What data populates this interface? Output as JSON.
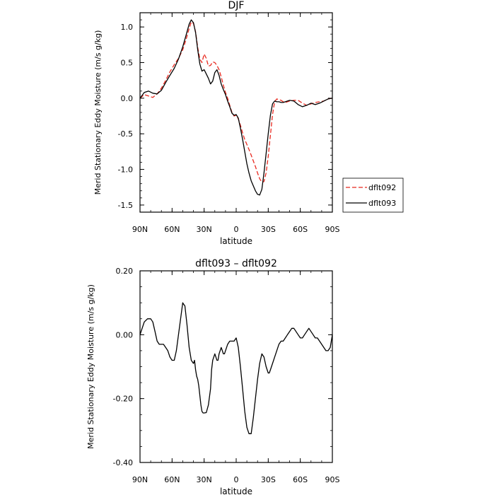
{
  "chart_data": [
    {
      "type": "line",
      "title": "DJF",
      "xlabel": "latitude",
      "ylabel": "Merid Stationary Eddy Moisture (m/s g/kg)",
      "xlim": [
        90,
        -90
      ],
      "ylim": [
        -1.6,
        1.2
      ],
      "xticks": [
        {
          "value": 90,
          "label": "90N"
        },
        {
          "value": 60,
          "label": "60N"
        },
        {
          "value": 30,
          "label": "30N"
        },
        {
          "value": 0,
          "label": "0"
        },
        {
          "value": -30,
          "label": "30S"
        },
        {
          "value": -60,
          "label": "60S"
        },
        {
          "value": -90,
          "label": "90S"
        }
      ],
      "yticks": [
        {
          "value": 1.0,
          "label": "1.0"
        },
        {
          "value": 0.5,
          "label": "0.5"
        },
        {
          "value": 0.0,
          "label": "0.0"
        },
        {
          "value": -0.5,
          "label": "-0.5"
        },
        {
          "value": -1.0,
          "label": "-1.0"
        },
        {
          "value": -1.5,
          "label": "-1.5"
        }
      ],
      "legend_placement": "outside-right",
      "series": [
        {
          "name": "dflt092",
          "color": "#e8281e",
          "dash": "dashed",
          "x": [
            90,
            86,
            82,
            78,
            74,
            70,
            66,
            62,
            58,
            54,
            50,
            47,
            44,
            42,
            40,
            38,
            36,
            34,
            32,
            30,
            28,
            26,
            24,
            22,
            20,
            18,
            16,
            14,
            12,
            10,
            8,
            6,
            4,
            2,
            0,
            -2,
            -4,
            -6,
            -8,
            -10,
            -12,
            -14,
            -16,
            -18,
            -20,
            -22,
            -24,
            -26,
            -28,
            -30,
            -32,
            -34,
            -36,
            -38,
            -40,
            -42,
            -44,
            -46,
            -48,
            -50,
            -54,
            -58,
            -62,
            -66,
            -70,
            -74,
            -78,
            -82,
            -86,
            -90
          ],
          "y": [
            0.0,
            0.05,
            0.03,
            0.01,
            0.06,
            0.14,
            0.25,
            0.37,
            0.47,
            0.56,
            0.68,
            0.82,
            0.98,
            1.07,
            1.05,
            0.93,
            0.71,
            0.55,
            0.5,
            0.62,
            0.56,
            0.45,
            0.46,
            0.51,
            0.5,
            0.46,
            0.4,
            0.3,
            0.18,
            0.08,
            0.0,
            -0.1,
            -0.2,
            -0.25,
            -0.24,
            -0.29,
            -0.38,
            -0.49,
            -0.58,
            -0.65,
            -0.72,
            -0.8,
            -0.88,
            -0.96,
            -1.05,
            -1.13,
            -1.18,
            -1.17,
            -1.05,
            -0.82,
            -0.52,
            -0.23,
            -0.05,
            -0.01,
            -0.02,
            -0.03,
            -0.05,
            -0.06,
            -0.05,
            -0.04,
            -0.03,
            -0.03,
            -0.07,
            -0.1,
            -0.08,
            -0.06,
            -0.05,
            -0.04,
            -0.01,
            0.0
          ]
        },
        {
          "name": "dflt093",
          "color": "#000000",
          "dash": "solid",
          "x": [
            90,
            86,
            82,
            78,
            74,
            70,
            66,
            62,
            58,
            54,
            50,
            47,
            44,
            42,
            40,
            38,
            36,
            34,
            32,
            30,
            28,
            26,
            24,
            22,
            20,
            18,
            16,
            14,
            12,
            10,
            8,
            6,
            4,
            2,
            0,
            -2,
            -4,
            -6,
            -8,
            -10,
            -12,
            -14,
            -16,
            -18,
            -20,
            -22,
            -24,
            -26,
            -28,
            -30,
            -32,
            -34,
            -36,
            -38,
            -40,
            -42,
            -44,
            -46,
            -48,
            -50,
            -54,
            -58,
            -62,
            -66,
            -70,
            -74,
            -78,
            -82,
            -86,
            -90
          ],
          "y": [
            0.0,
            0.08,
            0.1,
            0.07,
            0.06,
            0.11,
            0.22,
            0.32,
            0.42,
            0.55,
            0.72,
            0.88,
            1.04,
            1.1,
            1.06,
            0.92,
            0.68,
            0.48,
            0.38,
            0.4,
            0.34,
            0.28,
            0.2,
            0.24,
            0.36,
            0.4,
            0.32,
            0.2,
            0.12,
            0.05,
            -0.04,
            -0.12,
            -0.21,
            -0.24,
            -0.23,
            -0.28,
            -0.42,
            -0.58,
            -0.75,
            -0.92,
            -1.05,
            -1.16,
            -1.23,
            -1.3,
            -1.35,
            -1.36,
            -1.28,
            -1.05,
            -0.78,
            -0.5,
            -0.24,
            -0.08,
            -0.04,
            -0.05,
            -0.05,
            -0.06,
            -0.06,
            -0.05,
            -0.04,
            -0.03,
            -0.04,
            -0.09,
            -0.12,
            -0.1,
            -0.07,
            -0.09,
            -0.07,
            -0.04,
            -0.01,
            0.0
          ]
        }
      ]
    },
    {
      "type": "line",
      "title": "dflt093 – dflt092",
      "xlabel": "latitude",
      "ylabel": "Merid Stationary Eddy Moisture (m/s g/kg)",
      "xlim": [
        90,
        -90
      ],
      "ylim": [
        -0.4,
        0.2
      ],
      "xticks": [
        {
          "value": 90,
          "label": "90N"
        },
        {
          "value": 60,
          "label": "60N"
        },
        {
          "value": 30,
          "label": "30N"
        },
        {
          "value": 0,
          "label": "0"
        },
        {
          "value": -30,
          "label": "30S"
        },
        {
          "value": -60,
          "label": "60S"
        },
        {
          "value": -90,
          "label": "90S"
        }
      ],
      "yticks": [
        {
          "value": 0.2,
          "label": "0.20"
        },
        {
          "value": 0.0,
          "label": "0.00"
        },
        {
          "value": -0.2,
          "label": "-0.20"
        },
        {
          "value": -0.4,
          "label": "-0.40"
        }
      ],
      "series": [
        {
          "color": "#000000",
          "dash": "solid",
          "x": [
            90,
            88,
            86,
            83,
            80,
            78,
            76,
            74,
            72,
            70,
            68,
            66,
            64,
            62,
            60,
            58,
            56,
            54,
            52,
            50,
            48,
            46,
            44,
            42,
            40,
            39,
            38,
            37,
            36,
            35,
            34,
            33,
            32,
            31,
            30,
            28,
            26,
            24,
            23,
            22,
            21,
            20,
            19,
            18,
            17,
            16,
            15,
            14,
            13,
            12,
            11,
            10,
            8,
            6,
            4,
            2,
            0,
            -2,
            -4,
            -6,
            -8,
            -10,
            -12,
            -14,
            -16,
            -18,
            -20,
            -22,
            -24,
            -26,
            -28,
            -30,
            -31,
            -32,
            -33,
            -34,
            -35,
            -36,
            -37,
            -38,
            -40,
            -42,
            -44,
            -46,
            -48,
            -50,
            -52,
            -54,
            -56,
            -58,
            -60,
            -62,
            -64,
            -66,
            -68,
            -70,
            -72,
            -74,
            -76,
            -78,
            -80,
            -82,
            -84,
            -86,
            -88,
            -90
          ],
          "y": [
            0.0,
            0.02,
            0.04,
            0.05,
            0.05,
            0.04,
            0.01,
            -0.02,
            -0.03,
            -0.03,
            -0.03,
            -0.04,
            -0.05,
            -0.07,
            -0.08,
            -0.08,
            -0.05,
            0.0,
            0.05,
            0.1,
            0.09,
            0.03,
            -0.04,
            -0.08,
            -0.09,
            -0.08,
            -0.11,
            -0.13,
            -0.14,
            -0.16,
            -0.19,
            -0.22,
            -0.24,
            -0.245,
            -0.245,
            -0.244,
            -0.22,
            -0.17,
            -0.11,
            -0.08,
            -0.07,
            -0.06,
            -0.07,
            -0.08,
            -0.08,
            -0.06,
            -0.05,
            -0.04,
            -0.05,
            -0.06,
            -0.06,
            -0.05,
            -0.03,
            -0.02,
            -0.02,
            -0.02,
            -0.01,
            -0.04,
            -0.1,
            -0.17,
            -0.24,
            -0.29,
            -0.31,
            -0.31,
            -0.26,
            -0.2,
            -0.14,
            -0.09,
            -0.06,
            -0.07,
            -0.1,
            -0.12,
            -0.12,
            -0.11,
            -0.1,
            -0.09,
            -0.08,
            -0.07,
            -0.06,
            -0.05,
            -0.03,
            -0.02,
            -0.02,
            -0.01,
            0.0,
            0.01,
            0.02,
            0.02,
            0.01,
            0.0,
            -0.01,
            -0.01,
            0.0,
            0.01,
            0.02,
            0.01,
            0.0,
            -0.01,
            -0.01,
            -0.02,
            -0.03,
            -0.04,
            -0.05,
            -0.05,
            -0.04,
            0.0
          ]
        }
      ]
    }
  ]
}
